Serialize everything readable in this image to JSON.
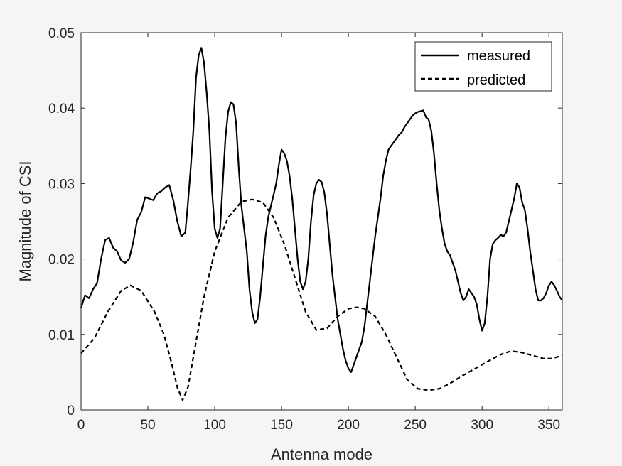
{
  "chart_data": {
    "type": "line",
    "xlabel": "Antenna mode",
    "ylabel": "Magnitude of CSI",
    "xlim": [
      0,
      360
    ],
    "ylim": [
      0,
      0.05
    ],
    "x_ticks": [
      0,
      50,
      100,
      150,
      200,
      250,
      300,
      350
    ],
    "y_ticks": [
      0,
      0.01,
      0.02,
      0.03,
      0.04,
      0.05
    ],
    "x_tick_labels": [
      "0",
      "50",
      "100",
      "150",
      "200",
      "250",
      "300",
      "350"
    ],
    "y_tick_labels": [
      "0",
      "0.01",
      "0.02",
      "0.03",
      "0.04",
      "0.05"
    ],
    "grid": false,
    "legend_position": "top-right",
    "series": [
      {
        "name": "measured",
        "style": "solid",
        "color": "#000000",
        "points": [
          [
            0,
            0.0135
          ],
          [
            3,
            0.0152
          ],
          [
            6,
            0.0148
          ],
          [
            9,
            0.016
          ],
          [
            12,
            0.0168
          ],
          [
            15,
            0.02
          ],
          [
            18,
            0.0225
          ],
          [
            21,
            0.0228
          ],
          [
            24,
            0.0215
          ],
          [
            27,
            0.021
          ],
          [
            30,
            0.0198
          ],
          [
            33,
            0.0195
          ],
          [
            36,
            0.02
          ],
          [
            39,
            0.0222
          ],
          [
            42,
            0.0252
          ],
          [
            45,
            0.0262
          ],
          [
            48,
            0.0282
          ],
          [
            51,
            0.028
          ],
          [
            54,
            0.0278
          ],
          [
            57,
            0.0287
          ],
          [
            60,
            0.029
          ],
          [
            63,
            0.0295
          ],
          [
            66,
            0.0298
          ],
          [
            69,
            0.0278
          ],
          [
            72,
            0.025
          ],
          [
            75,
            0.023
          ],
          [
            78,
            0.0235
          ],
          [
            80,
            0.0275
          ],
          [
            82,
            0.032
          ],
          [
            84,
            0.037
          ],
          [
            86,
            0.044
          ],
          [
            88,
            0.047
          ],
          [
            90,
            0.048
          ],
          [
            92,
            0.046
          ],
          [
            94,
            0.042
          ],
          [
            96,
            0.037
          ],
          [
            98,
            0.029
          ],
          [
            100,
            0.024
          ],
          [
            102,
            0.0228
          ],
          [
            104,
            0.024
          ],
          [
            106,
            0.03
          ],
          [
            108,
            0.036
          ],
          [
            110,
            0.0395
          ],
          [
            112,
            0.0408
          ],
          [
            114,
            0.0405
          ],
          [
            116,
            0.038
          ],
          [
            118,
            0.032
          ],
          [
            120,
            0.027
          ],
          [
            122,
            0.024
          ],
          [
            124,
            0.021
          ],
          [
            126,
            0.016
          ],
          [
            128,
            0.013
          ],
          [
            130,
            0.0115
          ],
          [
            132,
            0.012
          ],
          [
            134,
            0.015
          ],
          [
            136,
            0.019
          ],
          [
            138,
            0.023
          ],
          [
            140,
            0.0255
          ],
          [
            142,
            0.027
          ],
          [
            144,
            0.0285
          ],
          [
            146,
            0.03
          ],
          [
            148,
            0.0325
          ],
          [
            150,
            0.0345
          ],
          [
            152,
            0.034
          ],
          [
            154,
            0.033
          ],
          [
            156,
            0.031
          ],
          [
            158,
            0.028
          ],
          [
            160,
            0.024
          ],
          [
            162,
            0.02
          ],
          [
            164,
            0.017
          ],
          [
            166,
            0.016
          ],
          [
            168,
            0.017
          ],
          [
            170,
            0.02
          ],
          [
            172,
            0.025
          ],
          [
            174,
            0.0285
          ],
          [
            176,
            0.03
          ],
          [
            178,
            0.0305
          ],
          [
            180,
            0.0302
          ],
          [
            182,
            0.0288
          ],
          [
            184,
            0.026
          ],
          [
            186,
            0.022
          ],
          [
            188,
            0.018
          ],
          [
            190,
            0.015
          ],
          [
            192,
            0.012
          ],
          [
            194,
            0.01
          ],
          [
            196,
            0.008
          ],
          [
            198,
            0.0065
          ],
          [
            200,
            0.0055
          ],
          [
            202,
            0.005
          ],
          [
            204,
            0.006
          ],
          [
            206,
            0.007
          ],
          [
            208,
            0.008
          ],
          [
            210,
            0.009
          ],
          [
            212,
            0.011
          ],
          [
            214,
            0.014
          ],
          [
            216,
            0.017
          ],
          [
            218,
            0.02
          ],
          [
            220,
            0.023
          ],
          [
            222,
            0.0255
          ],
          [
            224,
            0.028
          ],
          [
            226,
            0.031
          ],
          [
            228,
            0.033
          ],
          [
            230,
            0.0345
          ],
          [
            232,
            0.035
          ],
          [
            234,
            0.0355
          ],
          [
            236,
            0.036
          ],
          [
            238,
            0.0365
          ],
          [
            240,
            0.0368
          ],
          [
            242,
            0.0375
          ],
          [
            244,
            0.038
          ],
          [
            246,
            0.0385
          ],
          [
            248,
            0.039
          ],
          [
            250,
            0.0393
          ],
          [
            252,
            0.0395
          ],
          [
            254,
            0.0396
          ],
          [
            256,
            0.0397
          ],
          [
            258,
            0.0388
          ],
          [
            260,
            0.0385
          ],
          [
            262,
            0.037
          ],
          [
            264,
            0.034
          ],
          [
            266,
            0.03
          ],
          [
            268,
            0.0265
          ],
          [
            270,
            0.024
          ],
          [
            272,
            0.022
          ],
          [
            274,
            0.021
          ],
          [
            276,
            0.0205
          ],
          [
            278,
            0.0195
          ],
          [
            280,
            0.0185
          ],
          [
            282,
            0.017
          ],
          [
            284,
            0.0155
          ],
          [
            286,
            0.0145
          ],
          [
            288,
            0.015
          ],
          [
            290,
            0.016
          ],
          [
            292,
            0.0155
          ],
          [
            294,
            0.015
          ],
          [
            296,
            0.014
          ],
          [
            298,
            0.012
          ],
          [
            300,
            0.0105
          ],
          [
            302,
            0.0115
          ],
          [
            304,
            0.015
          ],
          [
            306,
            0.02
          ],
          [
            308,
            0.022
          ],
          [
            310,
            0.0225
          ],
          [
            312,
            0.0228
          ],
          [
            314,
            0.0232
          ],
          [
            316,
            0.023
          ],
          [
            318,
            0.0235
          ],
          [
            320,
            0.025
          ],
          [
            322,
            0.0265
          ],
          [
            324,
            0.028
          ],
          [
            326,
            0.03
          ],
          [
            328,
            0.0295
          ],
          [
            330,
            0.0275
          ],
          [
            332,
            0.0265
          ],
          [
            334,
            0.024
          ],
          [
            336,
            0.021
          ],
          [
            338,
            0.0185
          ],
          [
            340,
            0.016
          ],
          [
            342,
            0.0145
          ],
          [
            344,
            0.0145
          ],
          [
            346,
            0.0148
          ],
          [
            348,
            0.0155
          ],
          [
            350,
            0.0165
          ],
          [
            352,
            0.017
          ],
          [
            354,
            0.0165
          ],
          [
            356,
            0.0158
          ],
          [
            358,
            0.015
          ],
          [
            360,
            0.0145
          ]
        ]
      },
      {
        "name": "predicted",
        "style": "dashed",
        "color": "#000000",
        "points": [
          [
            0,
            0.0075
          ],
          [
            10,
            0.0095
          ],
          [
            20,
            0.013
          ],
          [
            30,
            0.0158
          ],
          [
            37,
            0.0165
          ],
          [
            45,
            0.0158
          ],
          [
            55,
            0.013
          ],
          [
            62,
            0.01
          ],
          [
            68,
            0.006
          ],
          [
            72,
            0.003
          ],
          [
            76,
            0.0013
          ],
          [
            80,
            0.003
          ],
          [
            86,
            0.009
          ],
          [
            92,
            0.015
          ],
          [
            100,
            0.021
          ],
          [
            110,
            0.0255
          ],
          [
            120,
            0.0276
          ],
          [
            128,
            0.0279
          ],
          [
            136,
            0.0275
          ],
          [
            144,
            0.0255
          ],
          [
            152,
            0.022
          ],
          [
            160,
            0.0175
          ],
          [
            168,
            0.013
          ],
          [
            176,
            0.0106
          ],
          [
            184,
            0.0108
          ],
          [
            192,
            0.0124
          ],
          [
            200,
            0.0134
          ],
          [
            206,
            0.0136
          ],
          [
            212,
            0.0134
          ],
          [
            220,
            0.0124
          ],
          [
            228,
            0.01
          ],
          [
            236,
            0.007
          ],
          [
            244,
            0.004
          ],
          [
            252,
            0.0028
          ],
          [
            260,
            0.0026
          ],
          [
            268,
            0.0028
          ],
          [
            276,
            0.0035
          ],
          [
            284,
            0.0044
          ],
          [
            292,
            0.0052
          ],
          [
            300,
            0.006
          ],
          [
            308,
            0.0068
          ],
          [
            316,
            0.0075
          ],
          [
            322,
            0.0078
          ],
          [
            330,
            0.0076
          ],
          [
            338,
            0.0072
          ],
          [
            346,
            0.0068
          ],
          [
            352,
            0.0068
          ],
          [
            360,
            0.0072
          ]
        ]
      }
    ]
  }
}
